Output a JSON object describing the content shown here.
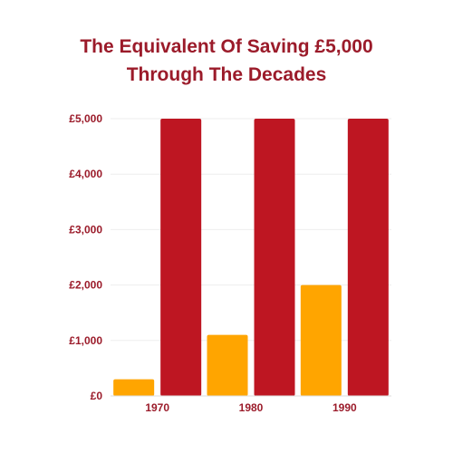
{
  "title_line1": "The Equivalent Of Saving £5,000",
  "title_line2": "Through The Decades",
  "colors": {
    "series_old": "#ffa500",
    "series_new": "#be1622",
    "text": "#9b1b2a",
    "grid": "#eeeeee"
  },
  "chart_data": {
    "type": "bar",
    "title": "The Equivalent Of Saving £5,000 Through The Decades",
    "xlabel": "",
    "ylabel": "",
    "categories": [
      "1970",
      "1980",
      "1990"
    ],
    "series": [
      {
        "values": [
          300,
          1100,
          2000
        ]
      },
      {
        "values": [
          5000,
          5000,
          5000
        ]
      }
    ],
    "ylim": [
      0,
      5000
    ],
    "yticks": [
      0,
      1000,
      2000,
      3000,
      4000,
      5000
    ],
    "ytick_labels": [
      "£0",
      "£1,000",
      "£2,000",
      "£3,000",
      "£4,000",
      "£5,000"
    ],
    "grid": true,
    "legend": "none"
  }
}
